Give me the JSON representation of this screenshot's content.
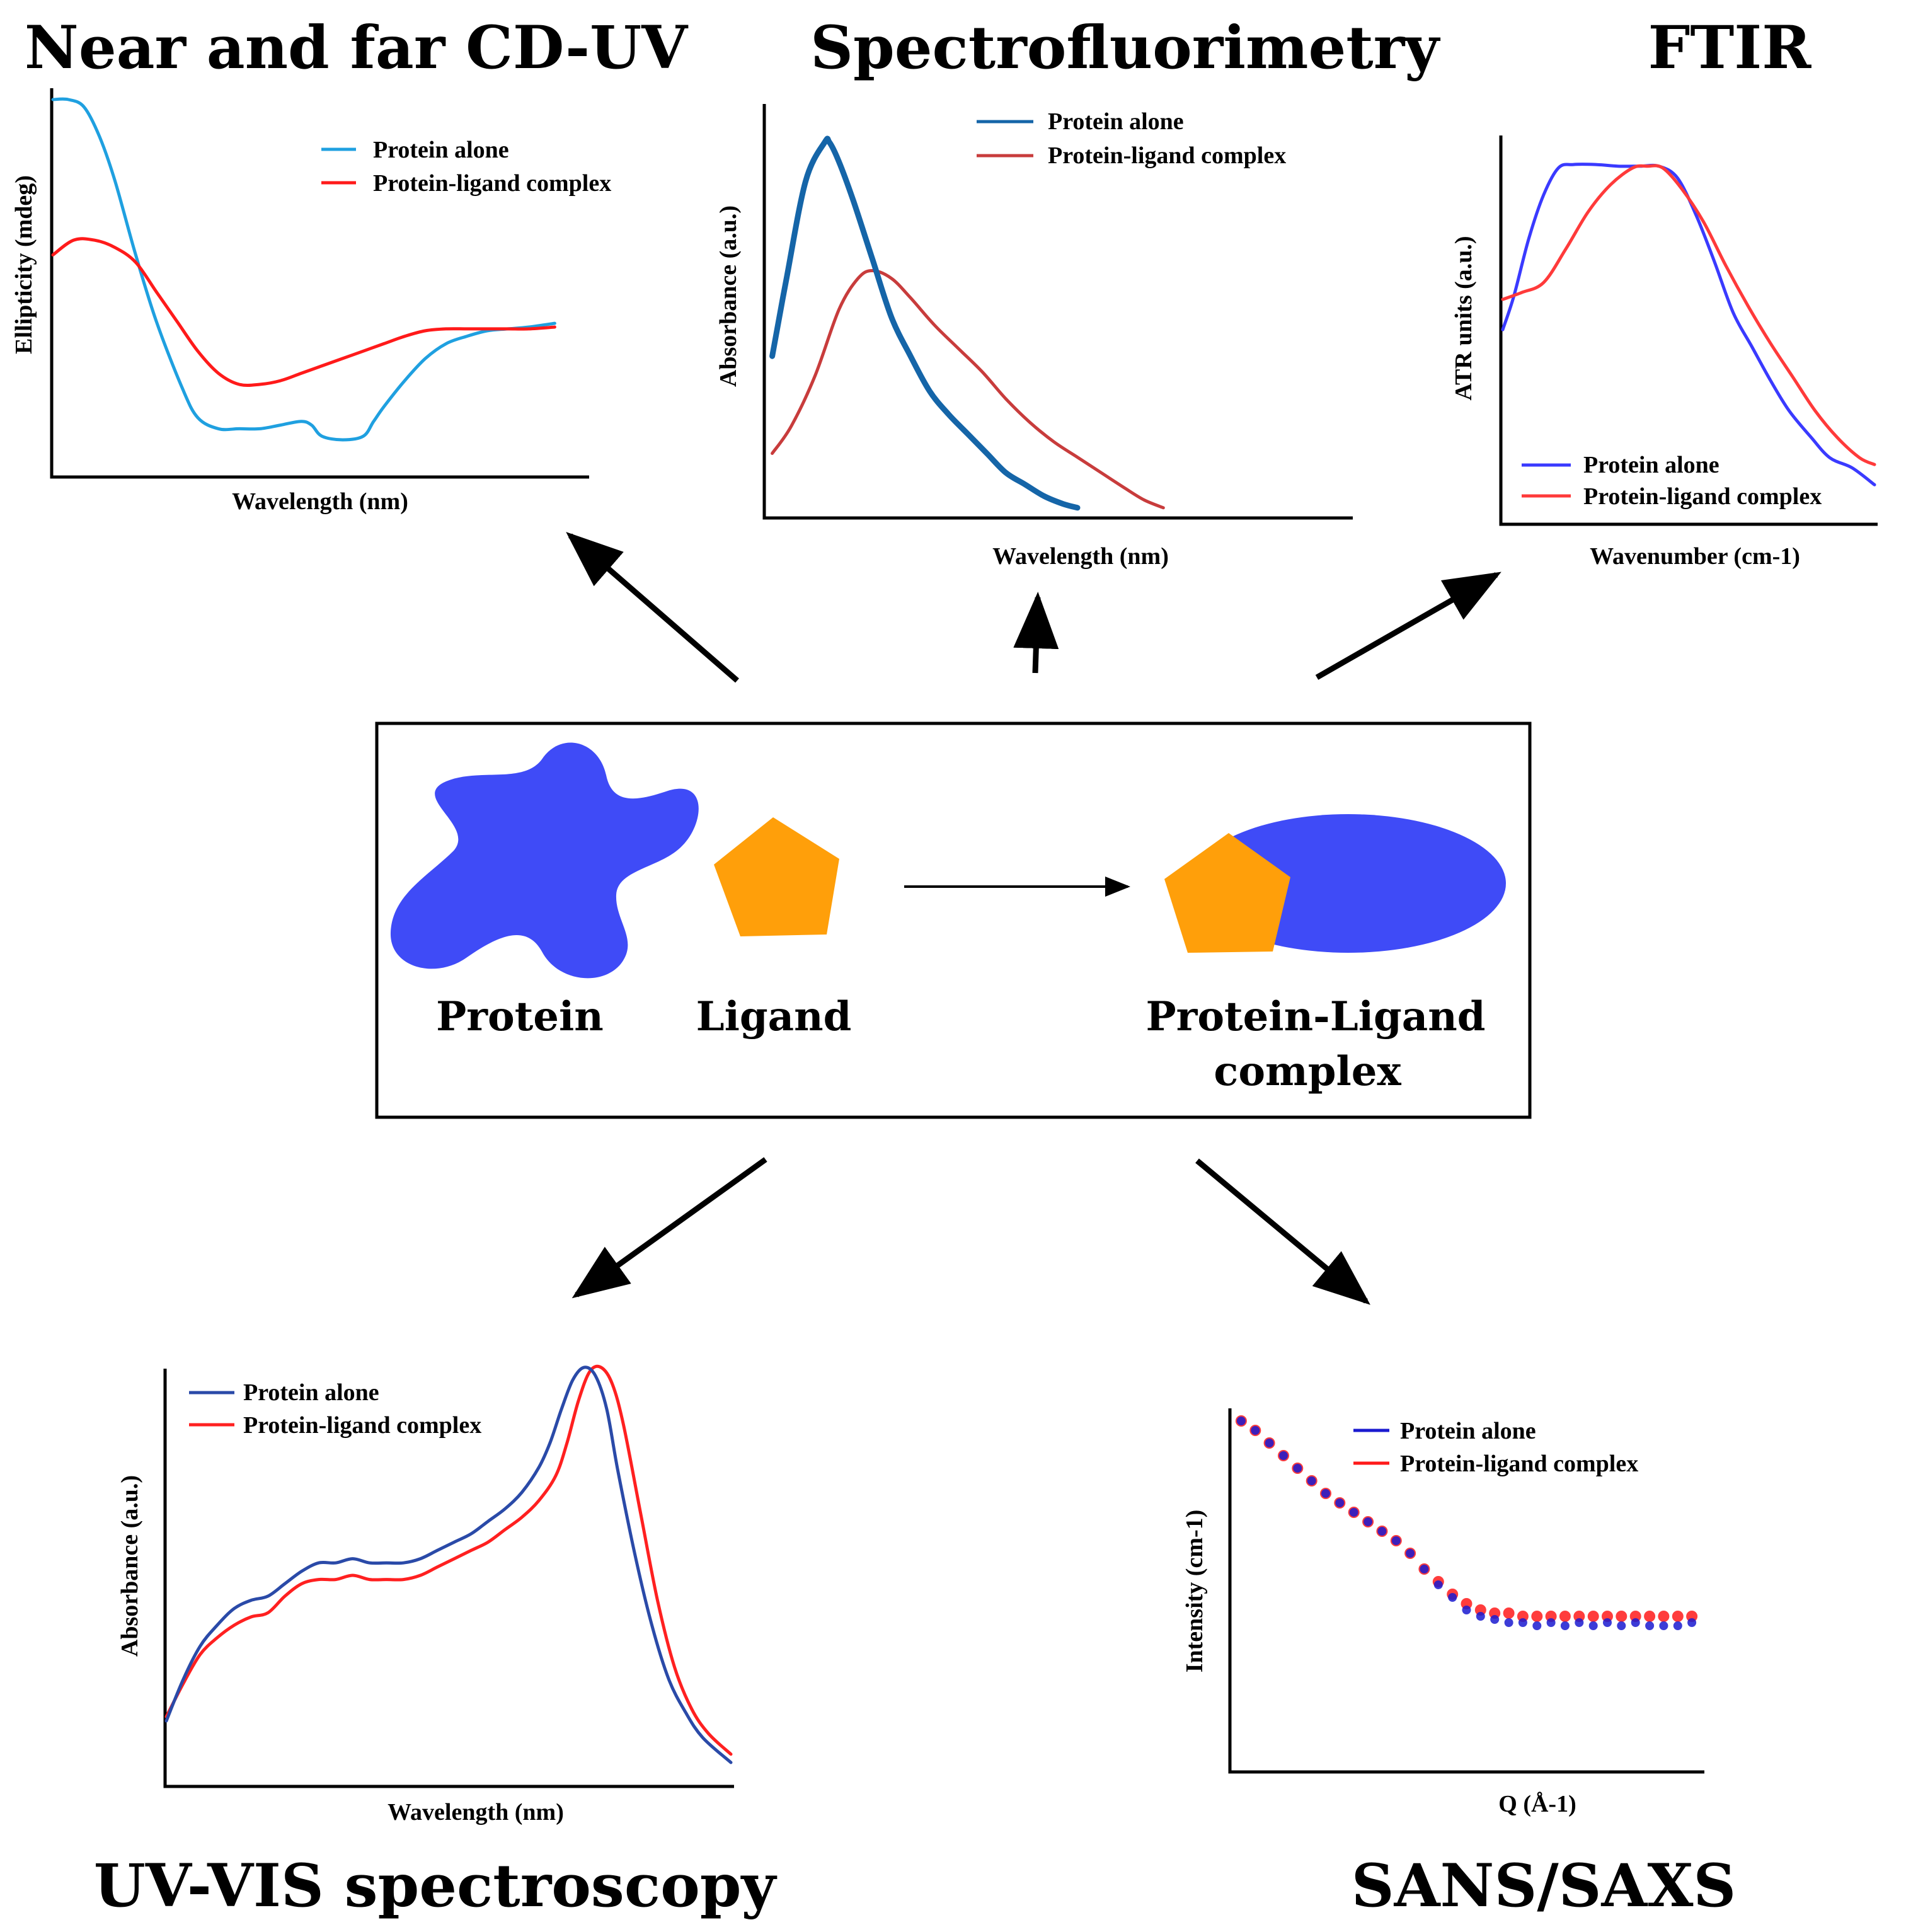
{
  "colors": {
    "cd_protein": "#1fa0e0",
    "cd_complex": "#ff1a1a",
    "fl_protein": "#1565a8",
    "fl_complex": "#c83c3c",
    "ftir_protein": "#3a3aff",
    "ftir_complex": "#ff3a3a",
    "uv_protein": "#2a4aa8",
    "uv_complex": "#ff2020",
    "sans_protein": "#1a1ad0",
    "sans_complex": "#ff1a1a",
    "protein_shape": "#3f4bf7",
    "ligand_shape": "#ff9f0a",
    "arrow": "#000000"
  },
  "center_box": {
    "protein_label": "Protein",
    "ligand_label": "Ligand",
    "complex_label_line1": "Protein-Ligand",
    "complex_label_line2": "complex"
  },
  "chart_data": [
    {
      "id": "cd",
      "type": "line",
      "title": "Near and far CD-UV",
      "xlabel": "Wavelength (nm)",
      "ylabel": "Ellipticity (mdeg)",
      "xlim": [
        0,
        100
      ],
      "ylim": [
        0,
        100
      ],
      "grid": false,
      "legend": "top-right",
      "series": [
        {
          "name": "Protein alone",
          "color_key": "cd_protein",
          "x": [
            0,
            3,
            6,
            9,
            12,
            16,
            20,
            25,
            28,
            32,
            36,
            40,
            44,
            48,
            50,
            52,
            56,
            60,
            62,
            64,
            68,
            72,
            76,
            80,
            84,
            88,
            92,
            97
          ],
          "y": [
            100,
            100,
            98,
            90,
            78,
            58,
            40,
            22,
            14,
            11,
            11,
            11,
            12,
            13,
            12,
            9,
            8,
            9,
            13,
            17,
            24,
            30,
            34,
            36,
            37.5,
            38,
            38.5,
            39.5
          ]
        },
        {
          "name": "Protein-ligand complex",
          "color_key": "cd_complex",
          "x": [
            0,
            4,
            8,
            12,
            16,
            20,
            24,
            28,
            32,
            36,
            40,
            44,
            48,
            52,
            56,
            60,
            64,
            68,
            72,
            76,
            80,
            84,
            88,
            92,
            97
          ],
          "y": [
            58,
            62,
            62,
            60,
            56,
            48,
            40,
            32,
            26,
            23,
            23,
            24,
            26,
            28,
            30,
            32,
            34,
            36,
            37.5,
            38,
            38,
            38,
            38,
            38,
            38.5
          ]
        }
      ]
    },
    {
      "id": "fl",
      "type": "line",
      "title": "Spectrofluorimetry",
      "xlabel": "Wavelength (nm)",
      "ylabel": "Absorbance (a.u.)",
      "xlim": [
        0,
        100
      ],
      "ylim": [
        0,
        100
      ],
      "grid": false,
      "legend": "top-right",
      "series": [
        {
          "name": "Protein alone",
          "color_key": "fl_protein",
          "x": [
            1,
            4,
            8,
            12,
            13,
            15,
            18,
            22,
            26,
            30,
            34,
            38,
            42,
            46,
            50,
            54,
            58,
            62,
            65
          ],
          "y": [
            40,
            60,
            85,
            95,
            95,
            90,
            80,
            65,
            50,
            40,
            31,
            25,
            20,
            15,
            10,
            7,
            4,
            2,
            1
          ]
        },
        {
          "name": "Protein-ligand complex",
          "color_key": "fl_complex",
          "x": [
            1,
            5,
            10,
            15,
            19,
            22,
            26,
            30,
            35,
            40,
            45,
            50,
            55,
            60,
            65,
            70,
            75,
            79,
            83
          ],
          "y": [
            15,
            22,
            35,
            52,
            60,
            62,
            60,
            55,
            48,
            42,
            36,
            29,
            23,
            18,
            14,
            10,
            6,
            3,
            1
          ]
        }
      ]
    },
    {
      "id": "ftir",
      "type": "line",
      "title": "FTIR",
      "xlabel": "Wavenumber (cm-1)",
      "ylabel": "ATR units (a.u.)",
      "xlim": [
        0,
        100
      ],
      "ylim": [
        0,
        100
      ],
      "grid": false,
      "legend": "bottom-right",
      "series": [
        {
          "name": "Protein alone",
          "color_key": "ftir_protein",
          "x": [
            0,
            3,
            7,
            11,
            15,
            19,
            25,
            31,
            37,
            42,
            47,
            52,
            57,
            62,
            67,
            72,
            77,
            83,
            88,
            94,
            100
          ],
          "y": [
            48,
            58,
            75,
            88,
            96,
            97,
            97,
            96.5,
            96.5,
            96.5,
            93,
            82,
            68,
            53,
            43,
            33,
            24,
            16,
            10,
            7,
            2
          ]
        },
        {
          "name": "Protein-ligand complex",
          "color_key": "ftir_complex",
          "x": [
            0,
            5,
            11,
            17,
            23,
            29,
            35,
            39,
            43,
            48,
            54,
            60,
            66,
            72,
            78,
            84,
            90,
            96,
            100
          ],
          "y": [
            57,
            59,
            62,
            72,
            83,
            91,
            96,
            96.5,
            96,
            90,
            80,
            67,
            55,
            44,
            34,
            24,
            16,
            10,
            8
          ]
        }
      ]
    },
    {
      "id": "uv",
      "type": "line",
      "title": "UV-VIS spectroscopy",
      "xlabel": "Wavelength (nm)",
      "ylabel": "Absorbance (a.u.)",
      "xlim": [
        0,
        100
      ],
      "ylim": [
        0,
        100
      ],
      "grid": false,
      "legend": "top-left",
      "series": [
        {
          "name": "Protein alone",
          "color_key": "uv_protein",
          "x": [
            0,
            3,
            6,
            9,
            12,
            15,
            18,
            21,
            24,
            27,
            30,
            33,
            36,
            39,
            42,
            45,
            48,
            51,
            54,
            57,
            60,
            63,
            66,
            68,
            70,
            72,
            74,
            76,
            78,
            80,
            83,
            86,
            89,
            92,
            95,
            100
          ],
          "y": [
            15,
            25,
            33,
            38,
            42,
            44,
            45,
            48,
            51,
            53,
            53,
            54,
            53,
            53,
            53,
            54,
            56,
            58,
            60,
            63,
            66,
            70,
            76,
            82,
            90,
            97,
            100,
            98,
            90,
            75,
            55,
            38,
            25,
            17,
            11,
            5
          ]
        },
        {
          "name": "Protein-ligand complex",
          "color_key": "uv_complex",
          "x": [
            0,
            3,
            6,
            9,
            12,
            15,
            18,
            21,
            24,
            27,
            30,
            33,
            36,
            39,
            42,
            45,
            48,
            51,
            54,
            57,
            60,
            63,
            66,
            69,
            71,
            73,
            75,
            77,
            79,
            81,
            84,
            87,
            90,
            93,
            96,
            100
          ],
          "y": [
            16,
            24,
            31,
            35,
            38,
            40,
            41,
            45,
            48,
            49,
            49,
            50,
            49,
            49,
            49,
            50,
            52,
            54,
            56,
            58,
            61,
            64,
            68,
            74,
            82,
            92,
            99,
            100,
            96,
            86,
            65,
            44,
            28,
            18,
            12,
            7
          ]
        }
      ]
    },
    {
      "id": "sans",
      "type": "scatter",
      "title": "SANS/SAXS",
      "xlabel": "Q (Å-1)",
      "ylabel": "Intensity (cm-1)",
      "xlim": [
        0,
        100
      ],
      "ylim": [
        0,
        100
      ],
      "grid": false,
      "legend": "top-right",
      "series": [
        {
          "name": "Protein alone",
          "color_key": "sans_protein",
          "x": [
            2,
            5,
            8,
            11,
            14,
            17,
            20,
            23,
            26,
            29,
            32,
            35,
            38,
            41,
            44,
            47,
            50,
            53,
            56,
            59,
            62,
            65,
            68,
            71,
            74,
            77,
            80,
            83,
            86,
            89,
            92,
            95,
            98
          ],
          "y": [
            98,
            95,
            91,
            87,
            83,
            79,
            75,
            72,
            69,
            66,
            63,
            60,
            56,
            51,
            46,
            42,
            38,
            36,
            35,
            34,
            34,
            33,
            34,
            33,
            34,
            33,
            34,
            33,
            34,
            33,
            33,
            33,
            34
          ]
        },
        {
          "name": "Protein-ligand complex",
          "color_key": "sans_complex",
          "x": [
            2,
            5,
            8,
            11,
            14,
            17,
            20,
            23,
            26,
            29,
            32,
            35,
            38,
            41,
            44,
            47,
            50,
            53,
            56,
            59,
            62,
            65,
            68,
            71,
            74,
            77,
            80,
            83,
            86,
            89,
            92,
            95,
            98
          ],
          "y": [
            98,
            95,
            91,
            87,
            83,
            79,
            75,
            72,
            69,
            66,
            63,
            60,
            56,
            51,
            47,
            43,
            40,
            38,
            37,
            37,
            36,
            36,
            36,
            36,
            36,
            36,
            36,
            36,
            36,
            36,
            36,
            36,
            36
          ]
        }
      ]
    }
  ]
}
